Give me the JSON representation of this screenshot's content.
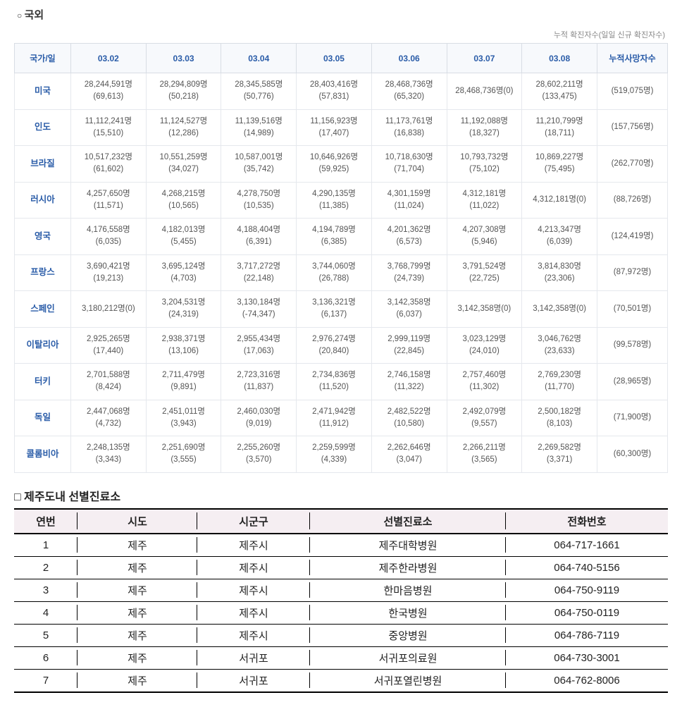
{
  "covid": {
    "section_title": "국외",
    "caption": "누적 확진자수(일일 신규 확진자수)",
    "headers": [
      "국가/일",
      "03.02",
      "03.03",
      "03.04",
      "03.05",
      "03.06",
      "03.07",
      "03.08",
      "누적사망자수"
    ],
    "rows": [
      {
        "country": "미국",
        "cells": [
          {
            "main": "28,244,591명",
            "sub": "(69,613)"
          },
          {
            "main": "28,294,809명",
            "sub": "(50,218)"
          },
          {
            "main": "28,345,585명",
            "sub": "(50,776)"
          },
          {
            "main": "28,403,416명",
            "sub": "(57,831)"
          },
          {
            "main": "28,468,736명",
            "sub": "(65,320)"
          },
          {
            "main": "28,468,736명(0)",
            "sub": ""
          },
          {
            "main": "28,602,211명",
            "sub": "(133,475)"
          }
        ],
        "deaths": "(519,075명)"
      },
      {
        "country": "인도",
        "cells": [
          {
            "main": "11,112,241명",
            "sub": "(15,510)"
          },
          {
            "main": "11,124,527명",
            "sub": "(12,286)"
          },
          {
            "main": "11,139,516명",
            "sub": "(14,989)"
          },
          {
            "main": "11,156,923명",
            "sub": "(17,407)"
          },
          {
            "main": "11,173,761명",
            "sub": "(16,838)"
          },
          {
            "main": "11,192,088명",
            "sub": "(18,327)"
          },
          {
            "main": "11,210,799명",
            "sub": "(18,711)"
          }
        ],
        "deaths": "(157,756명)"
      },
      {
        "country": "브라질",
        "cells": [
          {
            "main": "10,517,232명",
            "sub": "(61,602)"
          },
          {
            "main": "10,551,259명",
            "sub": "(34,027)"
          },
          {
            "main": "10,587,001명",
            "sub": "(35,742)"
          },
          {
            "main": "10,646,926명",
            "sub": "(59,925)"
          },
          {
            "main": "10,718,630명",
            "sub": "(71,704)"
          },
          {
            "main": "10,793,732명",
            "sub": "(75,102)"
          },
          {
            "main": "10,869,227명",
            "sub": "(75,495)"
          }
        ],
        "deaths": "(262,770명)"
      },
      {
        "country": "러시아",
        "cells": [
          {
            "main": "4,257,650명",
            "sub": "(11,571)"
          },
          {
            "main": "4,268,215명",
            "sub": "(10,565)"
          },
          {
            "main": "4,278,750명",
            "sub": "(10,535)"
          },
          {
            "main": "4,290,135명",
            "sub": "(11,385)"
          },
          {
            "main": "4,301,159명",
            "sub": "(11,024)"
          },
          {
            "main": "4,312,181명",
            "sub": "(11,022)"
          },
          {
            "main": "4,312,181명(0)",
            "sub": ""
          }
        ],
        "deaths": "(88,726명)"
      },
      {
        "country": "영국",
        "cells": [
          {
            "main": "4,176,558명",
            "sub": "(6,035)"
          },
          {
            "main": "4,182,013명",
            "sub": "(5,455)"
          },
          {
            "main": "4,188,404명",
            "sub": "(6,391)"
          },
          {
            "main": "4,194,789명",
            "sub": "(6,385)"
          },
          {
            "main": "4,201,362명",
            "sub": "(6,573)"
          },
          {
            "main": "4,207,308명",
            "sub": "(5,946)"
          },
          {
            "main": "4,213,347명",
            "sub": "(6,039)"
          }
        ],
        "deaths": "(124,419명)"
      },
      {
        "country": "프랑스",
        "cells": [
          {
            "main": "3,690,421명",
            "sub": "(19,213)"
          },
          {
            "main": "3,695,124명",
            "sub": "(4,703)"
          },
          {
            "main": "3,717,272명",
            "sub": "(22,148)"
          },
          {
            "main": "3,744,060명",
            "sub": "(26,788)"
          },
          {
            "main": "3,768,799명",
            "sub": "(24,739)"
          },
          {
            "main": "3,791,524명",
            "sub": "(22,725)"
          },
          {
            "main": "3,814,830명",
            "sub": "(23,306)"
          }
        ],
        "deaths": "(87,972명)"
      },
      {
        "country": "스페인",
        "cells": [
          {
            "main": "3,180,212명(0)",
            "sub": ""
          },
          {
            "main": "3,204,531명",
            "sub": "(24,319)"
          },
          {
            "main": "3,130,184명",
            "sub": "(-74,347)"
          },
          {
            "main": "3,136,321명",
            "sub": "(6,137)"
          },
          {
            "main": "3,142,358명",
            "sub": "(6,037)"
          },
          {
            "main": "3,142,358명(0)",
            "sub": ""
          },
          {
            "main": "3,142,358명(0)",
            "sub": ""
          }
        ],
        "deaths": "(70,501명)"
      },
      {
        "country": "이탈리아",
        "cells": [
          {
            "main": "2,925,265명",
            "sub": "(17,440)"
          },
          {
            "main": "2,938,371명",
            "sub": "(13,106)"
          },
          {
            "main": "2,955,434명",
            "sub": "(17,063)"
          },
          {
            "main": "2,976,274명",
            "sub": "(20,840)"
          },
          {
            "main": "2,999,119명",
            "sub": "(22,845)"
          },
          {
            "main": "3,023,129명",
            "sub": "(24,010)"
          },
          {
            "main": "3,046,762명",
            "sub": "(23,633)"
          }
        ],
        "deaths": "(99,578명)"
      },
      {
        "country": "터키",
        "cells": [
          {
            "main": "2,701,588명",
            "sub": "(8,424)"
          },
          {
            "main": "2,711,479명",
            "sub": "(9,891)"
          },
          {
            "main": "2,723,316명",
            "sub": "(11,837)"
          },
          {
            "main": "2,734,836명",
            "sub": "(11,520)"
          },
          {
            "main": "2,746,158명",
            "sub": "(11,322)"
          },
          {
            "main": "2,757,460명",
            "sub": "(11,302)"
          },
          {
            "main": "2,769,230명",
            "sub": "(11,770)"
          }
        ],
        "deaths": "(28,965명)"
      },
      {
        "country": "독일",
        "cells": [
          {
            "main": "2,447,068명",
            "sub": "(4,732)"
          },
          {
            "main": "2,451,011명",
            "sub": "(3,943)"
          },
          {
            "main": "2,460,030명",
            "sub": "(9,019)"
          },
          {
            "main": "2,471,942명",
            "sub": "(11,912)"
          },
          {
            "main": "2,482,522명",
            "sub": "(10,580)"
          },
          {
            "main": "2,492,079명",
            "sub": "(9,557)"
          },
          {
            "main": "2,500,182명",
            "sub": "(8,103)"
          }
        ],
        "deaths": "(71,900명)"
      },
      {
        "country": "콜롬비아",
        "cells": [
          {
            "main": "2,248,135명",
            "sub": "(3,343)"
          },
          {
            "main": "2,251,690명",
            "sub": "(3,555)"
          },
          {
            "main": "2,255,260명",
            "sub": "(3,570)"
          },
          {
            "main": "2,259,599명",
            "sub": "(4,339)"
          },
          {
            "main": "2,262,646명",
            "sub": "(3,047)"
          },
          {
            "main": "2,266,211명",
            "sub": "(3,565)"
          },
          {
            "main": "2,269,582명",
            "sub": "(3,371)"
          }
        ],
        "deaths": "(60,300명)"
      }
    ]
  },
  "clinic": {
    "section_title": "제주도내 선별진료소",
    "headers": [
      "연번",
      "시도",
      "시군구",
      "선별진료소",
      "전화번호"
    ],
    "rows": [
      [
        "1",
        "제주",
        "제주시",
        "제주대학병원",
        "064-717-1661"
      ],
      [
        "2",
        "제주",
        "제주시",
        "제주한라병원",
        "064-740-5156"
      ],
      [
        "3",
        "제주",
        "제주시",
        "한마음병원",
        "064-750-9119"
      ],
      [
        "4",
        "제주",
        "제주시",
        "한국병원",
        "064-750-0119"
      ],
      [
        "5",
        "제주",
        "제주시",
        "중앙병원",
        "064-786-7119"
      ],
      [
        "6",
        "제주",
        "서귀포",
        "서귀포의료원",
        "064-730-3001"
      ],
      [
        "7",
        "제주",
        "서귀포",
        "서귀포열린병원",
        "064-762-8006"
      ]
    ]
  },
  "colors": {
    "header_bg": "#f7f9fc",
    "header_text": "#2a5ca8",
    "border": "#d8dde4",
    "cell_border": "#e5e8ed",
    "clinic_header_bg": "#f5eef2"
  }
}
